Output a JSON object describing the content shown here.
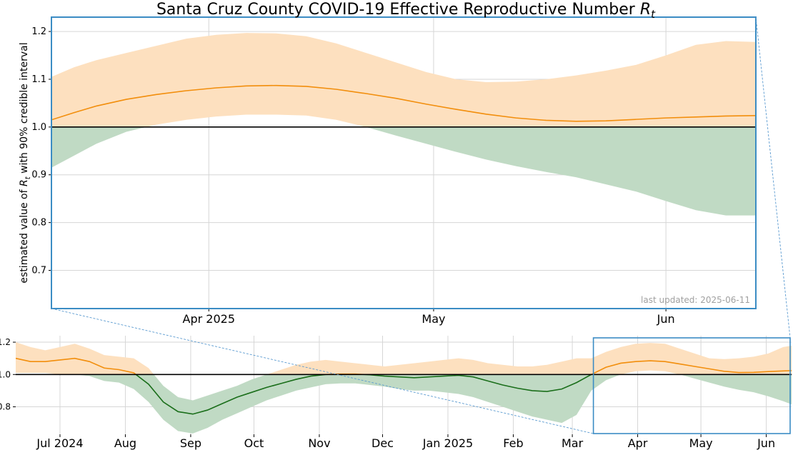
{
  "chart_data": [
    {
      "type": "line",
      "panel": "zoom",
      "title": "Santa Cruz County COVID-19 Effective Reproductive Number",
      "title_symbol": "R",
      "title_symbol_sub": "t",
      "ylabel_before": "estimated value of",
      "ylabel_symbol": "R",
      "ylabel_symbol_sub": "t",
      "ylabel_after": "with 90% credible interval",
      "xlabel": "",
      "x_range": [
        "2025-03-11",
        "2025-06-13"
      ],
      "ylim": [
        0.62,
        1.23
      ],
      "yticks": [
        "0.7",
        "0.8",
        "0.9",
        "1.0",
        "1.1",
        "1.2"
      ],
      "xticks": [
        {
          "date": "2025-04-01",
          "label": "Apr 2025"
        },
        {
          "date": "2025-05-01",
          "label": "May"
        },
        {
          "date": "2025-06-01",
          "label": "Jun"
        }
      ],
      "reference_line": 1.0,
      "grid": true,
      "annotation": "last updated: 2025-06-11",
      "series": [
        {
          "dates": [
            "2025-03-11",
            "2025-03-14",
            "2025-03-17",
            "2025-03-21",
            "2025-03-25",
            "2025-03-29",
            "2025-04-02",
            "2025-04-06",
            "2025-04-10",
            "2025-04-14",
            "2025-04-18",
            "2025-04-22",
            "2025-04-26",
            "2025-04-30",
            "2025-05-04",
            "2025-05-08",
            "2025-05-12",
            "2025-05-16",
            "2025-05-20",
            "2025-05-24",
            "2025-05-28",
            "2025-06-01",
            "2025-06-05",
            "2025-06-09",
            "2025-06-13"
          ],
          "values": [
            1.015,
            1.03,
            1.044,
            1.058,
            1.068,
            1.076,
            1.082,
            1.086,
            1.087,
            1.085,
            1.079,
            1.07,
            1.06,
            1.048,
            1.037,
            1.027,
            1.019,
            1.014,
            1.012,
            1.013,
            1.016,
            1.019,
            1.021,
            1.023,
            1.024
          ],
          "lower": [
            0.915,
            0.94,
            0.965,
            0.99,
            1.005,
            1.015,
            1.022,
            1.026,
            1.026,
            1.024,
            1.015,
            1.0,
            0.982,
            0.965,
            0.948,
            0.932,
            0.918,
            0.906,
            0.895,
            0.88,
            0.865,
            0.845,
            0.826,
            0.815,
            0.815
          ],
          "upper": [
            1.105,
            1.125,
            1.14,
            1.155,
            1.17,
            1.185,
            1.193,
            1.197,
            1.196,
            1.19,
            1.175,
            1.155,
            1.135,
            1.115,
            1.1,
            1.094,
            1.095,
            1.1,
            1.108,
            1.118,
            1.13,
            1.15,
            1.172,
            1.18,
            1.178
          ]
        }
      ]
    },
    {
      "type": "line",
      "panel": "overview",
      "x_range": [
        "2024-06-10",
        "2025-06-13"
      ],
      "ylim": [
        0.63,
        1.24
      ],
      "yticks": [
        "0.8",
        "1.0",
        "1.2"
      ],
      "xticks": [
        {
          "date": "2024-07-01",
          "label": "Jul 2024"
        },
        {
          "date": "2024-08-01",
          "label": "Aug"
        },
        {
          "date": "2024-09-01",
          "label": "Sep"
        },
        {
          "date": "2024-10-01",
          "label": "Oct"
        },
        {
          "date": "2024-11-01",
          "label": "Nov"
        },
        {
          "date": "2024-12-01",
          "label": "Dec"
        },
        {
          "date": "2025-01-01",
          "label": "Jan 2025"
        },
        {
          "date": "2025-02-01",
          "label": "Feb"
        },
        {
          "date": "2025-03-01",
          "label": "Mar"
        },
        {
          "date": "2025-04-01",
          "label": "Apr"
        },
        {
          "date": "2025-05-01",
          "label": "May"
        },
        {
          "date": "2025-06-01",
          "label": "Jun"
        }
      ],
      "reference_line": 1.0,
      "grid": true,
      "zoom_window": [
        "2025-03-11",
        "2025-06-13"
      ],
      "series": [
        {
          "dates": [
            "2024-06-10",
            "2024-06-17",
            "2024-06-24",
            "2024-07-01",
            "2024-07-08",
            "2024-07-15",
            "2024-07-22",
            "2024-07-29",
            "2024-08-05",
            "2024-08-12",
            "2024-08-19",
            "2024-08-26",
            "2024-09-02",
            "2024-09-09",
            "2024-09-16",
            "2024-09-23",
            "2024-09-30",
            "2024-10-07",
            "2024-10-14",
            "2024-10-21",
            "2024-10-28",
            "2024-11-04",
            "2024-11-11",
            "2024-11-18",
            "2024-11-25",
            "2024-12-02",
            "2024-12-09",
            "2024-12-16",
            "2024-12-23",
            "2024-12-30",
            "2025-01-06",
            "2025-01-13",
            "2025-01-20",
            "2025-01-27",
            "2025-02-03",
            "2025-02-10",
            "2025-02-17",
            "2025-02-24",
            "2025-03-03",
            "2025-03-10",
            "2025-03-17",
            "2025-03-24",
            "2025-03-31",
            "2025-04-07",
            "2025-04-14",
            "2025-04-21",
            "2025-04-28",
            "2025-05-05",
            "2025-05-12",
            "2025-05-19",
            "2025-05-26",
            "2025-06-02",
            "2025-06-09",
            "2025-06-13"
          ],
          "values": [
            1.1,
            1.08,
            1.08,
            1.09,
            1.1,
            1.08,
            1.04,
            1.03,
            1.01,
            0.94,
            0.83,
            0.77,
            0.755,
            0.78,
            0.82,
            0.86,
            0.89,
            0.92,
            0.945,
            0.97,
            0.99,
            1.0,
            1.003,
            1.003,
            0.998,
            0.99,
            0.985,
            0.98,
            0.985,
            0.99,
            0.995,
            0.985,
            0.96,
            0.935,
            0.915,
            0.9,
            0.895,
            0.91,
            0.95,
            1.0,
            1.045,
            1.07,
            1.08,
            1.085,
            1.08,
            1.065,
            1.05,
            1.035,
            1.02,
            1.012,
            1.013,
            1.018,
            1.022,
            1.024
          ],
          "lower": [
            1.01,
            1.01,
            1.01,
            1.0,
            1.0,
            0.99,
            0.96,
            0.95,
            0.91,
            0.83,
            0.72,
            0.65,
            0.635,
            0.67,
            0.72,
            0.76,
            0.8,
            0.84,
            0.87,
            0.9,
            0.92,
            0.94,
            0.945,
            0.945,
            0.935,
            0.925,
            0.91,
            0.9,
            0.9,
            0.89,
            0.88,
            0.86,
            0.83,
            0.8,
            0.77,
            0.74,
            0.72,
            0.7,
            0.75,
            0.9,
            0.965,
            1.0,
            1.02,
            1.025,
            1.02,
            1.0,
            0.975,
            0.95,
            0.925,
            0.905,
            0.89,
            0.865,
            0.835,
            0.815
          ],
          "upper": [
            1.2,
            1.17,
            1.15,
            1.17,
            1.19,
            1.16,
            1.12,
            1.11,
            1.1,
            1.04,
            0.93,
            0.86,
            0.84,
            0.87,
            0.9,
            0.93,
            0.97,
            1.0,
            1.03,
            1.06,
            1.08,
            1.09,
            1.08,
            1.07,
            1.06,
            1.05,
            1.06,
            1.07,
            1.08,
            1.09,
            1.1,
            1.09,
            1.07,
            1.06,
            1.05,
            1.05,
            1.06,
            1.08,
            1.1,
            1.1,
            1.14,
            1.17,
            1.19,
            1.195,
            1.19,
            1.16,
            1.13,
            1.1,
            1.095,
            1.1,
            1.11,
            1.13,
            1.17,
            1.178
          ]
        }
      ]
    }
  ],
  "colors": {
    "above_band": "#fde0bf",
    "below_band": "#c0dac4",
    "above_line": "#f28e0c",
    "below_line": "#1a6e1a",
    "reference": "#000000",
    "frame": "#3b8cc4",
    "connector": "#5a9ad0",
    "grid": "#d6d6d6",
    "annotation": "#a0a0a0"
  }
}
